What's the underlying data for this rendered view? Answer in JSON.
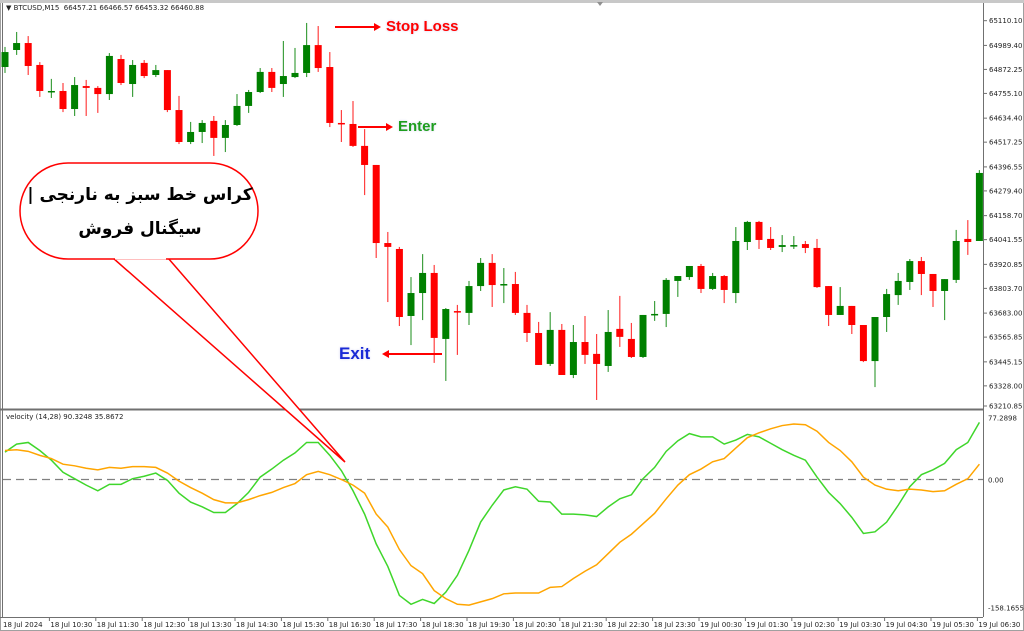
{
  "header": {
    "symbol": "BTCUSD,M15",
    "ohlc_text": "66457.21 66466.57 66453.32 66460.88"
  },
  "indicator_header": "velocity (14,28) 90.3248 35.8672",
  "annotations": {
    "stop_loss": "Stop Loss",
    "enter": "Enter",
    "exit": "Exit",
    "bubble_line1": "کراس خط سبز به نارنجی |",
    "bubble_line2": "سیگنال فروش"
  },
  "colors": {
    "bull": "#008000",
    "bear": "#ff0000",
    "fast_line": "#3fd62b",
    "slow_line": "#ffa500",
    "zero_line": "#808080",
    "stop_loss": "#ff0000",
    "enter": "#1e9e1e",
    "exit": "#1a2ad6"
  },
  "chart_data": [
    {
      "type": "candlestick",
      "title": "BTCUSD,M15",
      "price_axis_labels": [
        "65110.10",
        "64989.40",
        "64872.25",
        "64755.10",
        "64634.40",
        "64517.25",
        "64396.55",
        "64279.40",
        "64158.70",
        "64041.55",
        "63920.85",
        "63803.70",
        "63683.00",
        "63565.85",
        "63445.15",
        "63328.00",
        "63210.85"
      ],
      "x_labels": [
        "18 Jul 2024",
        "18 Jul 10:30",
        "18 Jul 11:30",
        "18 Jul 12:30",
        "18 Jul 13:30",
        "18 Jul 14:30",
        "18 Jul 15:30",
        "18 Jul 16:30",
        "18 Jul 17:30",
        "18 Jul 18:30",
        "18 Jul 19:30",
        "18 Jul 20:30",
        "18 Jul 21:30",
        "18 Jul 22:30",
        "18 Jul 23:30",
        "19 Jul 00:30",
        "19 Jul 01:30",
        "19 Jul 02:30",
        "19 Jul 03:30",
        "19 Jul 04:30",
        "19 Jul 05:30",
        "19 Jul 06:30"
      ],
      "ylim": [
        63210.85,
        65211
      ],
      "ohlc": [
        [
          64884,
          64982,
          64855,
          64957
        ],
        [
          64967,
          65055,
          64943,
          65001
        ],
        [
          65001,
          65035,
          64845,
          64889
        ],
        [
          64894,
          64908,
          64738,
          64767
        ],
        [
          64762,
          64826,
          64733,
          64767
        ],
        [
          64767,
          64806,
          64664,
          64679
        ],
        [
          64679,
          64835,
          64645,
          64796
        ],
        [
          64791,
          64821,
          64645,
          64782
        ],
        [
          64782,
          64791,
          64660,
          64752
        ],
        [
          64752,
          64952,
          64723,
          64938
        ],
        [
          64923,
          64943,
          64796,
          64806
        ],
        [
          64801,
          64918,
          64738,
          64894
        ],
        [
          64904,
          64918,
          64830,
          64840
        ],
        [
          64845,
          64894,
          64835,
          64869
        ],
        [
          64869,
          64869,
          64664,
          64674
        ],
        [
          64674,
          64743,
          64508,
          64518
        ],
        [
          64518,
          64616,
          64508,
          64567
        ],
        [
          64567,
          64625,
          64513,
          64611
        ],
        [
          64621,
          64645,
          64450,
          64538
        ],
        [
          64538,
          64625,
          64469,
          64601
        ],
        [
          64601,
          64752,
          64596,
          64694
        ],
        [
          64694,
          64772,
          64660,
          64762
        ],
        [
          64762,
          64879,
          64757,
          64860
        ],
        [
          64860,
          64879,
          64762,
          64782
        ],
        [
          64801,
          65011,
          64738,
          64840
        ],
        [
          64835,
          64977,
          64830,
          64855
        ],
        [
          64855,
          65099,
          64835,
          64991
        ],
        [
          64991,
          65084,
          64860,
          64879
        ],
        [
          64884,
          64957,
          64591,
          64611
        ],
        [
          64611,
          64674,
          64518,
          64606
        ],
        [
          64606,
          64718,
          64494,
          64499
        ],
        [
          64499,
          64581,
          64259,
          64406
        ],
        [
          64406,
          64406,
          63952,
          64025
        ],
        [
          64025,
          64079,
          63737,
          64006
        ],
        [
          63996,
          64006,
          63620,
          63664
        ],
        [
          63669,
          63859,
          63527,
          63781
        ],
        [
          63781,
          63971,
          63649,
          63879
        ],
        [
          63879,
          63918,
          63440,
          63562
        ],
        [
          63557,
          63708,
          63352,
          63703
        ],
        [
          63693,
          63723,
          63479,
          63688
        ],
        [
          63684,
          63840,
          63625,
          63815
        ],
        [
          63815,
          63952,
          63791,
          63928
        ],
        [
          63928,
          63971,
          63713,
          63820
        ],
        [
          63820,
          63903,
          63732,
          63825
        ],
        [
          63825,
          63884,
          63674,
          63684
        ],
        [
          63684,
          63723,
          63542,
          63586
        ],
        [
          63586,
          63640,
          63430,
          63430
        ],
        [
          63435,
          63688,
          63425,
          63601
        ],
        [
          63601,
          63630,
          63381,
          63381
        ],
        [
          63381,
          63625,
          63366,
          63542
        ],
        [
          63542,
          63669,
          63435,
          63479
        ],
        [
          63484,
          63581,
          63259,
          63435
        ],
        [
          63425,
          63698,
          63396,
          63591
        ],
        [
          63606,
          63767,
          63518,
          63567
        ],
        [
          63557,
          63635,
          63464,
          63469
        ],
        [
          63469,
          63674,
          63464,
          63674
        ],
        [
          63674,
          63742,
          63645,
          63679
        ],
        [
          63679,
          63854,
          63615,
          63845
        ],
        [
          63840,
          63864,
          63762,
          63864
        ],
        [
          63859,
          63913,
          63845,
          63913
        ],
        [
          63913,
          63923,
          63781,
          63801
        ],
        [
          63801,
          63879,
          63796,
          63864
        ],
        [
          63864,
          63869,
          63732,
          63796
        ],
        [
          63781,
          64103,
          63732,
          64035
        ],
        [
          64030,
          64133,
          63991,
          64128
        ],
        [
          64128,
          64133,
          63996,
          64040
        ],
        [
          64045,
          64103,
          63991,
          64001
        ],
        [
          64006,
          64064,
          63981,
          64015
        ],
        [
          64011,
          64059,
          63996,
          64015
        ],
        [
          64020,
          64035,
          63976,
          64001
        ],
        [
          64001,
          64045,
          63806,
          63810
        ],
        [
          63815,
          63815,
          63620,
          63674
        ],
        [
          63674,
          63810,
          63674,
          63718
        ],
        [
          63718,
          63718,
          63581,
          63625
        ],
        [
          63625,
          63625,
          63444,
          63449
        ],
        [
          63449,
          63664,
          63322,
          63664
        ],
        [
          63664,
          63801,
          63591,
          63776
        ],
        [
          63771,
          63879,
          63723,
          63840
        ],
        [
          63835,
          63947,
          63796,
          63937
        ],
        [
          63937,
          63957,
          63771,
          63874
        ],
        [
          63874,
          63874,
          63713,
          63791
        ],
        [
          63791,
          63849,
          63649,
          63849
        ],
        [
          63845,
          64089,
          63830,
          64035
        ],
        [
          64045,
          64137,
          63967,
          64030
        ],
        [
          64035,
          64381,
          64035,
          64367
        ]
      ]
    },
    {
      "type": "line",
      "title": "velocity (14,28)",
      "axis_labels": [
        "77.2898",
        "0.00",
        "-158.1655"
      ],
      "ylim": [
        -158.1655,
        77.2898
      ],
      "zero_line": 0,
      "series": [
        {
          "values": [
            34,
            44,
            46,
            36,
            24,
            9,
            1,
            -7,
            -14,
            -6,
            -6,
            1,
            4,
            8,
            -1,
            -17,
            -28,
            -34,
            -41,
            -41,
            -30,
            -16,
            3,
            13,
            24,
            33,
            46,
            46,
            30,
            11,
            -14,
            -43,
            -80,
            -108,
            -144,
            -155,
            -149,
            -154,
            -140,
            -119,
            -88,
            -53,
            -32,
            -13,
            -9,
            -12,
            -27,
            -28,
            -43,
            -43,
            -44,
            -46,
            -34,
            -24,
            -19,
            1,
            15,
            35,
            48,
            57,
            53,
            53,
            44,
            49,
            56,
            53,
            45,
            37,
            30,
            24,
            3,
            -16,
            -30,
            -47,
            -67,
            -65,
            -53,
            -32,
            -9,
            6,
            12,
            20,
            37,
            46,
            71
          ]
        },
        {
          "values": [
            36,
            37,
            35,
            30,
            26,
            19,
            17,
            14,
            12,
            15,
            14,
            16,
            16,
            15,
            8,
            -2,
            -10,
            -17,
            -25,
            -29,
            -29,
            -25,
            -20,
            -16,
            -10,
            -5,
            6,
            10,
            6,
            0,
            -7,
            -17,
            -43,
            -59,
            -87,
            -107,
            -117,
            -138,
            -148,
            -155,
            -156,
            -152,
            -148,
            -142,
            -141,
            -141,
            -141,
            -134,
            -133,
            -123,
            -114,
            -106,
            -92,
            -78,
            -68,
            -55,
            -42,
            -24,
            -7,
            6,
            13,
            22,
            26,
            39,
            52,
            58,
            63,
            67,
            69,
            68,
            60,
            46,
            36,
            22,
            3,
            -7,
            -12,
            -14,
            -12,
            -13,
            -15,
            -14,
            -6,
            1,
            19
          ]
        }
      ]
    }
  ]
}
